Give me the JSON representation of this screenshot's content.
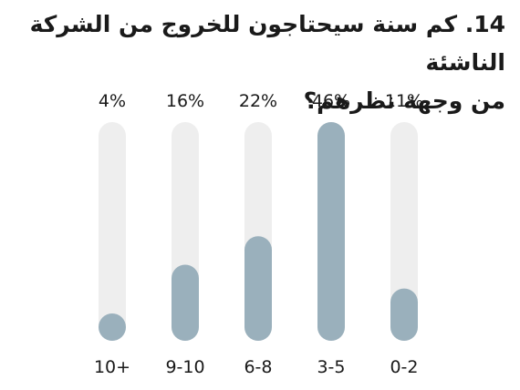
{
  "title_line1": "14. كم سنة سيحتاجون للخروج من الشركة الناشئة",
  "title_line2": "من وجهة نظرهم؟",
  "colors": {
    "track": "#eeeeee",
    "fill": "#9ab0bc",
    "text": "#1a1a1a"
  },
  "chart_data": {
    "type": "bar",
    "orientation": "vertical",
    "categories": [
      "10+",
      "9-10",
      "6-8",
      "3-5",
      "0-2"
    ],
    "values": [
      4,
      16,
      22,
      46,
      11
    ],
    "value_labels": [
      "4%",
      "16%",
      "22%",
      "46%",
      "11%"
    ],
    "unit": "%",
    "ylim": [
      0,
      46
    ],
    "grid": false,
    "legend": "none"
  }
}
